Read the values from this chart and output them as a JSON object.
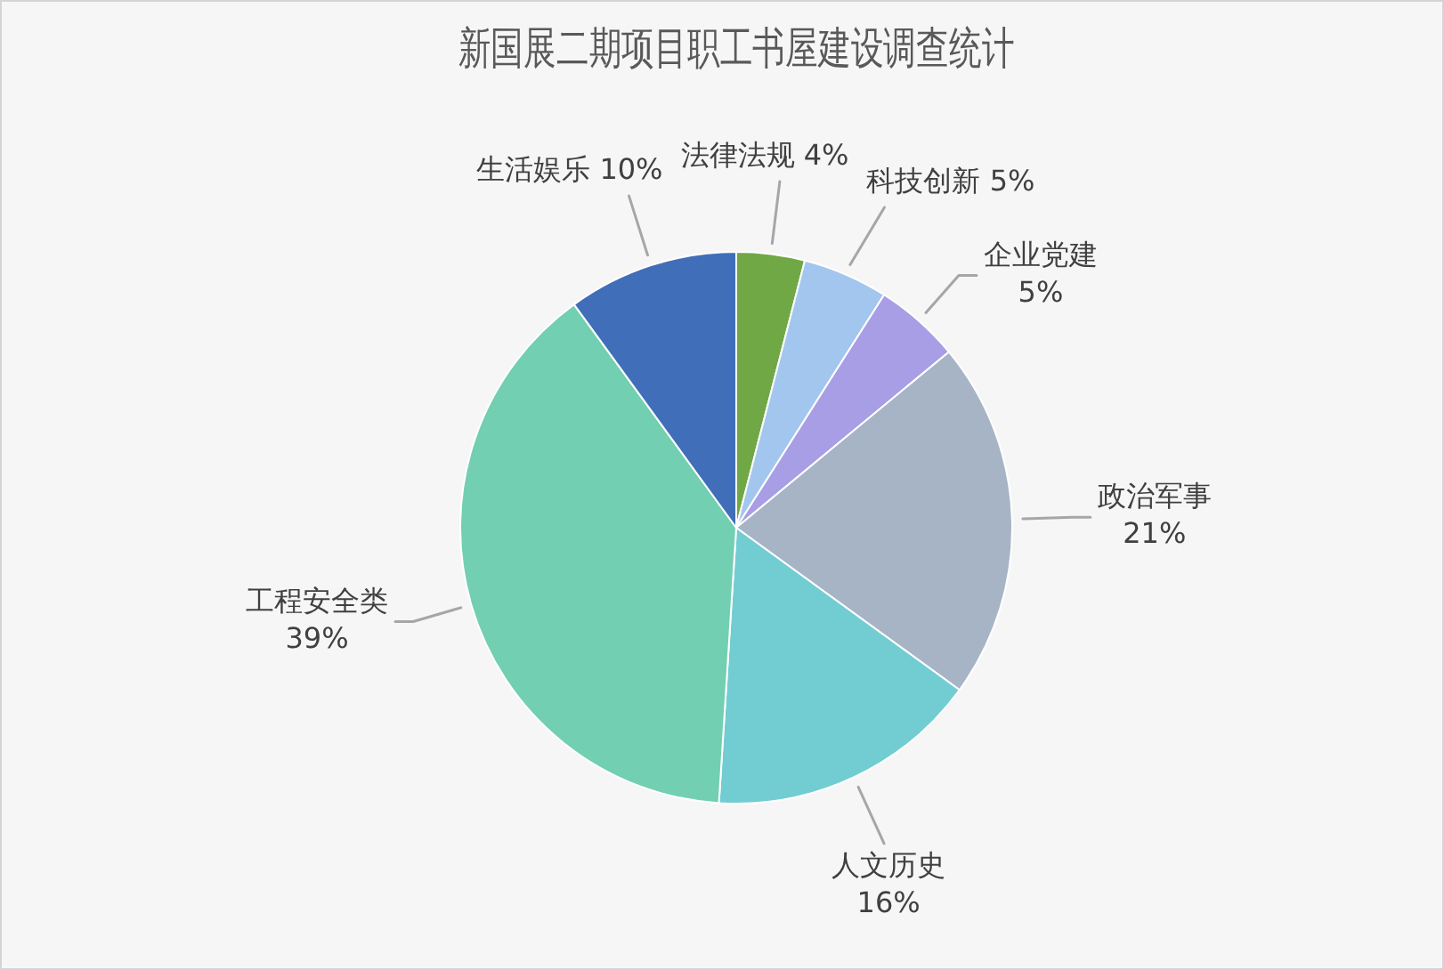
{
  "chart_data": {
    "type": "pie",
    "title": "新国展二期项目职工书屋建设调查统计",
    "categories": [
      "法律法规",
      "科技创新",
      "企业党建",
      "政治军事",
      "人文历史",
      "工程安全类",
      "生活娱乐"
    ],
    "values": [
      4,
      5,
      5,
      21,
      16,
      39,
      10
    ],
    "colors": [
      "#70a845",
      "#a3c6ee",
      "#a89ee6",
      "#a6b4c6",
      "#72cdd2",
      "#72cfb1",
      "#416eb9"
    ],
    "value_labels": [
      "4%",
      "5%",
      "5%",
      "21%",
      "16%",
      "39%",
      "10%"
    ]
  }
}
